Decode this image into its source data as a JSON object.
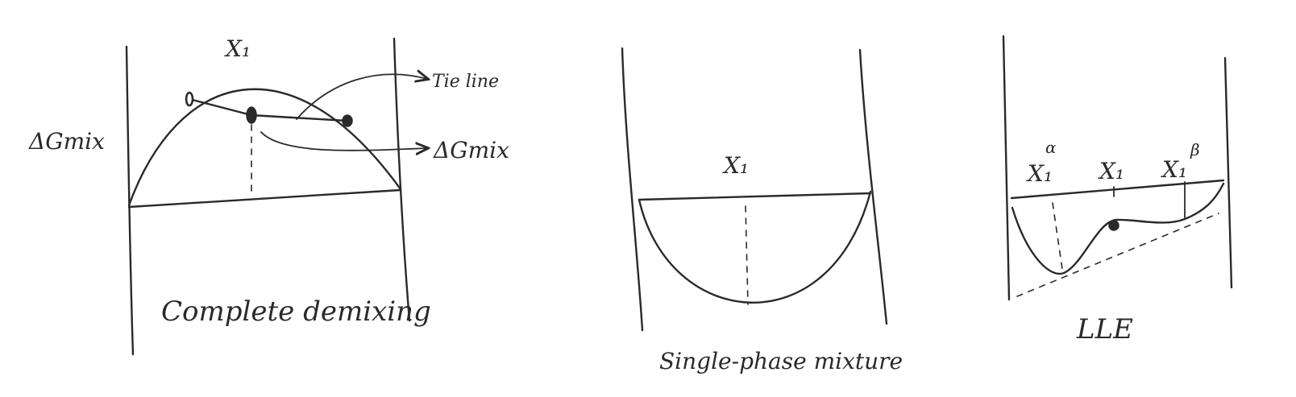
{
  "panels": [
    {
      "caption": "Complete demixing",
      "ylabel": "ΔGmix",
      "x_label": "X₁",
      "annotations": {
        "tie_line": "Tie line",
        "point": "ΔGmix"
      }
    },
    {
      "caption": "Single-phase mixture",
      "x_label": "X₁"
    },
    {
      "caption": "LLE",
      "x_alpha": "X₁",
      "x_alpha_sup": "α",
      "x_mid": "X₁",
      "x_beta": "X₁",
      "x_beta_sup": "β"
    }
  ]
}
